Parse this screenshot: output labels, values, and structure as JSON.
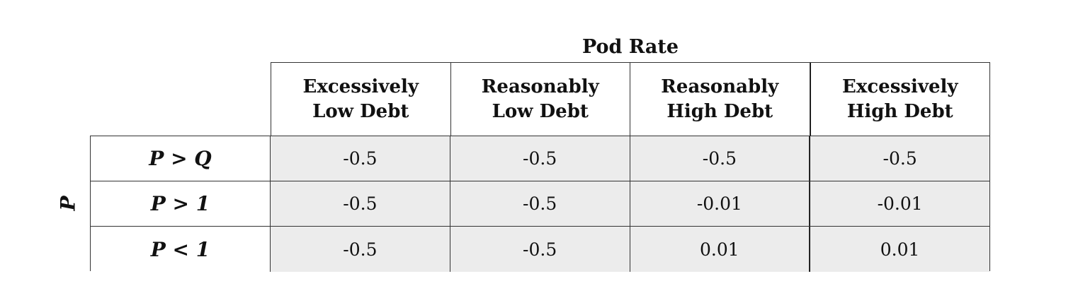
{
  "chart_data": {
    "type": "table",
    "column_title": "Pod Rate",
    "row_title": "P",
    "columns": [
      [
        "Excessively",
        "Low Debt"
      ],
      [
        "Reasonably",
        "Low Debt"
      ],
      [
        "Reasonably",
        "High Debt"
      ],
      [
        "Excessively",
        "High Debt"
      ]
    ],
    "rows": [
      {
        "label": "P > Q",
        "values": [
          "-0.5",
          "-0.5",
          "-0.5",
          "-0.5"
        ]
      },
      {
        "label": "P > 1",
        "values": [
          "-0.5",
          "-0.5",
          "-0.01",
          "-0.01"
        ]
      },
      {
        "label": "P < 1",
        "values": [
          "-0.5",
          "-0.5",
          "0.01",
          "0.01"
        ]
      }
    ]
  }
}
